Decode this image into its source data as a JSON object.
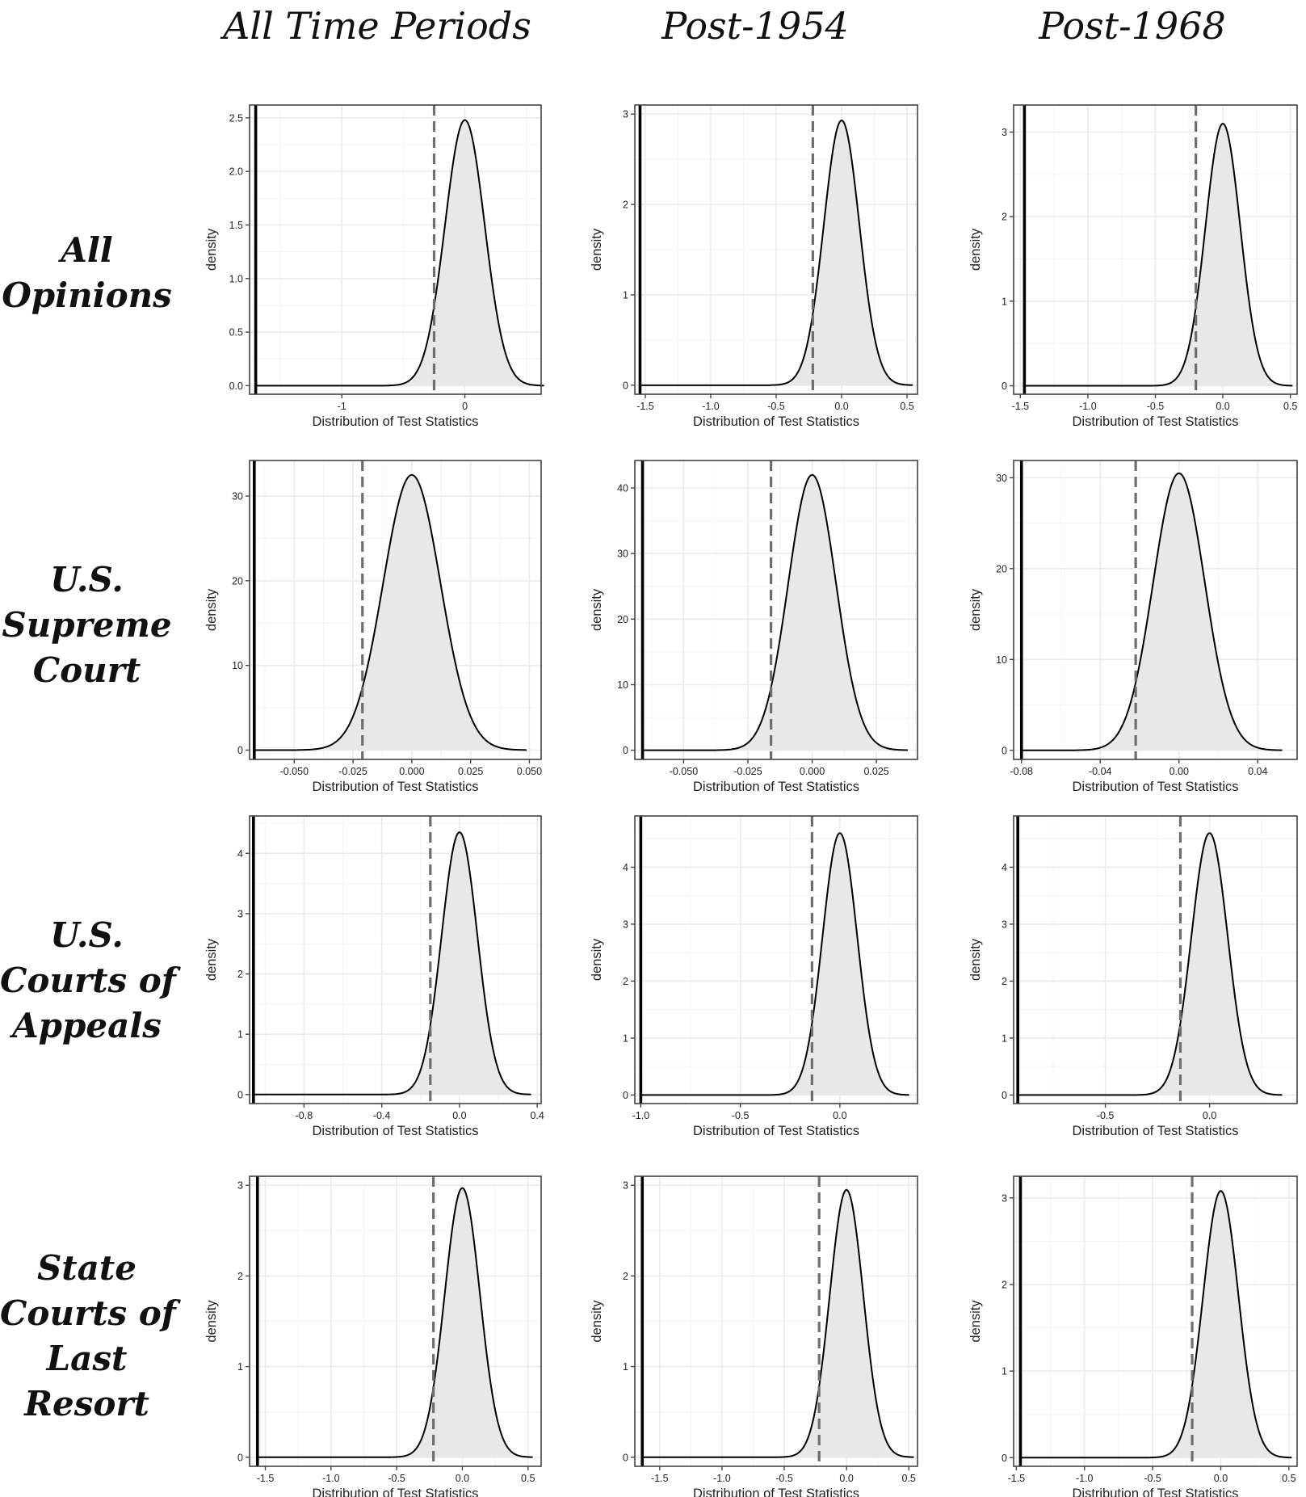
{
  "column_headers": [
    "All Time Periods",
    "Post-1954",
    "Post-1968"
  ],
  "row_headers": [
    [
      "All",
      "Opinions"
    ],
    [
      "U.S.",
      "Supreme",
      "Court"
    ],
    [
      "U.S.",
      "Courts of",
      "Appeals"
    ],
    [
      "State",
      "Courts of",
      "Last",
      "Resort"
    ]
  ],
  "colors": {
    "fill": "#e8e8e8",
    "curve": "#000000",
    "dashed": "#6e6e6e",
    "grid": "#ebebeb",
    "frame": "#444444"
  },
  "chart_data": [
    {
      "type": "area",
      "row": 0,
      "col": 0,
      "title": "",
      "xlabel": "Distribution of Test Statistics",
      "ylabel": "density",
      "xlim": [
        -1.75,
        0.62
      ],
      "ylim": [
        -0.08,
        2.62
      ],
      "xticks": [
        -1,
        0
      ],
      "xtick_labels": [
        "-1",
        "0"
      ],
      "yticks": [
        0,
        0.5,
        1,
        1.5,
        2,
        2.5
      ],
      "ytick_labels": [
        "0.0",
        "0.5",
        "1.0",
        "1.5",
        "2.0",
        "2.5"
      ],
      "distribution": {
        "peak_x": 0,
        "peak_y": 2.48,
        "sd": 0.161
      },
      "observed_statistic": -1.7,
      "null_dashed_line": -0.25
    },
    {
      "type": "area",
      "row": 0,
      "col": 1,
      "title": "",
      "xlabel": "Distribution of Test Statistics",
      "ylabel": "density",
      "xlim": [
        -1.58,
        0.58
      ],
      "ylim": [
        -0.1,
        3.1
      ],
      "xticks": [
        -1.5,
        -1,
        -0.5,
        0,
        0.5
      ],
      "xtick_labels": [
        "-1.5",
        "-1.0",
        "-0.5",
        "0.0",
        "0.5"
      ],
      "yticks": [
        0,
        1,
        2,
        3
      ],
      "ytick_labels": [
        "0",
        "1",
        "2",
        "3"
      ],
      "distribution": {
        "peak_x": 0,
        "peak_y": 2.93,
        "sd": 0.136
      },
      "observed_statistic": -1.54,
      "null_dashed_line": -0.22
    },
    {
      "type": "area",
      "row": 0,
      "col": 2,
      "title": "",
      "xlabel": "Distribution of Test Statistics",
      "ylabel": "density",
      "xlim": [
        -1.55,
        0.55
      ],
      "ylim": [
        -0.1,
        3.32
      ],
      "xticks": [
        -1.5,
        -1,
        -0.5,
        0,
        0.5
      ],
      "xtick_labels": [
        "-1.5",
        "-1.0",
        "-0.5",
        "0.0",
        "0.5"
      ],
      "yticks": [
        0,
        1,
        2,
        3
      ],
      "ytick_labels": [
        "0",
        "1",
        "2",
        "3"
      ],
      "distribution": {
        "peak_x": 0,
        "peak_y": 3.1,
        "sd": 0.129
      },
      "observed_statistic": -1.47,
      "null_dashed_line": -0.2
    },
    {
      "type": "area",
      "row": 1,
      "col": 0,
      "title": "",
      "xlabel": "Distribution of Test Statistics",
      "ylabel": "density",
      "xlim": [
        -0.069,
        0.055
      ],
      "ylim": [
        -1.1,
        34.2
      ],
      "xticks": [
        -0.05,
        -0.025,
        0,
        0.025,
        0.05
      ],
      "xtick_labels": [
        "-0.050",
        "-0.025",
        "0.000",
        "0.025",
        "0.050"
      ],
      "yticks": [
        0,
        10,
        20,
        30
      ],
      "ytick_labels": [
        "0",
        "10",
        "20",
        "30"
      ],
      "distribution": {
        "peak_x": 0,
        "peak_y": 32.5,
        "sd": 0.0122
      },
      "observed_statistic": -0.067,
      "null_dashed_line": -0.021
    },
    {
      "type": "area",
      "row": 1,
      "col": 1,
      "title": "",
      "xlabel": "Distribution of Test Statistics",
      "ylabel": "density",
      "xlim": [
        -0.069,
        0.041
      ],
      "ylim": [
        -1.4,
        44.2
      ],
      "xticks": [
        -0.05,
        -0.025,
        0,
        0.025
      ],
      "xtick_labels": [
        "-0.050",
        "-0.025",
        "0.000",
        "0.025"
      ],
      "yticks": [
        0,
        10,
        20,
        30,
        40
      ],
      "ytick_labels": [
        "0",
        "10",
        "20",
        "30",
        "40"
      ],
      "distribution": {
        "peak_x": 0,
        "peak_y": 42,
        "sd": 0.0093
      },
      "observed_statistic": -0.066,
      "null_dashed_line": -0.016
    },
    {
      "type": "area",
      "row": 1,
      "col": 2,
      "title": "",
      "xlabel": "Distribution of Test Statistics",
      "ylabel": "density",
      "xlim": [
        -0.084,
        0.06
      ],
      "ylim": [
        -1.0,
        31.9
      ],
      "xticks": [
        -0.08,
        -0.04,
        0,
        0.04
      ],
      "xtick_labels": [
        "-0.08",
        "-0.04",
        "0.00",
        "0.04"
      ],
      "yticks": [
        0,
        10,
        20,
        30
      ],
      "ytick_labels": [
        "0",
        "10",
        "20",
        "30"
      ],
      "distribution": {
        "peak_x": 0,
        "peak_y": 30.5,
        "sd": 0.0131
      },
      "observed_statistic": -0.08,
      "null_dashed_line": -0.022
    },
    {
      "type": "area",
      "row": 2,
      "col": 0,
      "title": "",
      "xlabel": "Distribution of Test Statistics",
      "ylabel": "density",
      "xlim": [
        -1.08,
        0.42
      ],
      "ylim": [
        -0.15,
        4.62
      ],
      "xticks": [
        -0.8,
        -0.4,
        0,
        0.4
      ],
      "xtick_labels": [
        "-0.8",
        "-0.4",
        "0.0",
        "0.4"
      ],
      "yticks": [
        0,
        1,
        2,
        3,
        4
      ],
      "ytick_labels": [
        "0",
        "1",
        "2",
        "3",
        "4"
      ],
      "distribution": {
        "peak_x": 0,
        "peak_y": 4.35,
        "sd": 0.092
      },
      "observed_statistic": -1.06,
      "null_dashed_line": -0.15
    },
    {
      "type": "area",
      "row": 2,
      "col": 1,
      "title": "",
      "xlabel": "Distribution of Test Statistics",
      "ylabel": "density",
      "xlim": [
        -1.03,
        0.39
      ],
      "ylim": [
        -0.15,
        4.9
      ],
      "xticks": [
        -1,
        -0.5,
        0
      ],
      "xtick_labels": [
        "-1.0",
        "-0.5",
        "0.0"
      ],
      "yticks": [
        0,
        1,
        2,
        3,
        4
      ],
      "ytick_labels": [
        "0",
        "1",
        "2",
        "3",
        "4"
      ],
      "distribution": {
        "peak_x": 0,
        "peak_y": 4.6,
        "sd": 0.087
      },
      "observed_statistic": -1.0,
      "null_dashed_line": -0.14
    },
    {
      "type": "area",
      "row": 2,
      "col": 2,
      "title": "",
      "xlabel": "Distribution of Test Statistics",
      "ylabel": "density",
      "xlim": [
        -0.94,
        0.42
      ],
      "ylim": [
        -0.15,
        4.9
      ],
      "xticks": [
        -0.5,
        0
      ],
      "xtick_labels": [
        "-0.5",
        "0.0"
      ],
      "yticks": [
        0,
        1,
        2,
        3,
        4
      ],
      "ytick_labels": [
        "0",
        "1",
        "2",
        "3",
        "4"
      ],
      "distribution": {
        "peak_x": 0,
        "peak_y": 4.6,
        "sd": 0.087
      },
      "observed_statistic": -0.92,
      "null_dashed_line": -0.14
    },
    {
      "type": "area",
      "row": 3,
      "col": 0,
      "title": "",
      "xlabel": "Distribution of Test Statistics",
      "ylabel": "density",
      "xlim": [
        -1.62,
        0.6
      ],
      "ylim": [
        -0.1,
        3.1
      ],
      "xticks": [
        -1.5,
        -1,
        -0.5,
        0,
        0.5
      ],
      "xtick_labels": [
        "-1.5",
        "-1.0",
        "-0.5",
        "0.0",
        "0.5"
      ],
      "yticks": [
        0,
        1,
        2,
        3
      ],
      "ytick_labels": [
        "0",
        "1",
        "2",
        "3"
      ],
      "distribution": {
        "peak_x": 0,
        "peak_y": 2.97,
        "sd": 0.134
      },
      "observed_statistic": -1.56,
      "null_dashed_line": -0.22
    },
    {
      "type": "area",
      "row": 3,
      "col": 1,
      "title": "",
      "xlabel": "Distribution of Test Statistics",
      "ylabel": "density",
      "xlim": [
        -1.7,
        0.57
      ],
      "ylim": [
        -0.1,
        3.1
      ],
      "xticks": [
        -1.5,
        -1,
        -0.5,
        0,
        0.5
      ],
      "xtick_labels": [
        "-1.5",
        "-1.0",
        "-0.5",
        "0.0",
        "0.5"
      ],
      "yticks": [
        0,
        1,
        2,
        3
      ],
      "ytick_labels": [
        "0",
        "1",
        "2",
        "3"
      ],
      "distribution": {
        "peak_x": 0,
        "peak_y": 2.95,
        "sd": 0.135
      },
      "observed_statistic": -1.64,
      "null_dashed_line": -0.22
    },
    {
      "type": "area",
      "row": 3,
      "col": 2,
      "title": "",
      "xlabel": "Distribution of Test Statistics",
      "ylabel": "density",
      "xlim": [
        -1.52,
        0.56
      ],
      "ylim": [
        -0.1,
        3.25
      ],
      "xticks": [
        -1.5,
        -1,
        -0.5,
        0,
        0.5
      ],
      "xtick_labels": [
        "-1.5",
        "-1.0",
        "-0.5",
        "0.0",
        "0.5"
      ],
      "yticks": [
        0,
        1,
        2,
        3
      ],
      "ytick_labels": [
        "0",
        "1",
        "2",
        "3"
      ],
      "distribution": {
        "peak_x": 0,
        "peak_y": 3.08,
        "sd": 0.13
      },
      "observed_statistic": -1.47,
      "null_dashed_line": -0.21
    }
  ]
}
